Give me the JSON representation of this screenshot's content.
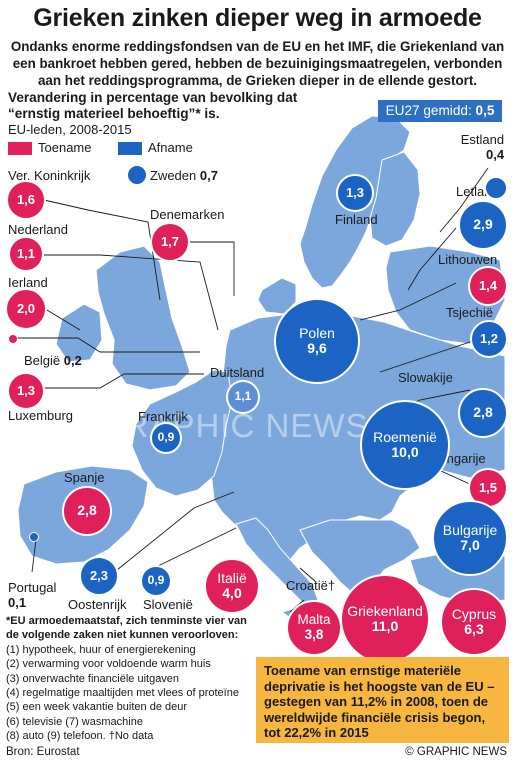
{
  "title": "Grieken zinken dieper weg in armoede",
  "intro": "Ondanks enorme reddingsfondsen van de EU en het IMF, die Griekenland van een bankroet hebben gered, hebben de bezuinigingsmaatregelen, verbonden aan het reddingsprogramma, de Grieken dieper in de ellende gestort.",
  "subhead": "Verandering in percentage van bevolking dat “ernstig materieel behoeftig”* is.",
  "subsub": "EU-leden, 2008-2015",
  "legend": {
    "increase": "Toename",
    "decrease": "Afname",
    "increase_color": "#e0205a",
    "decrease_color": "#1b64c4"
  },
  "average": {
    "label": "EU27 gemidd:",
    "value": "0,5"
  },
  "countries": {
    "uk": {
      "name": "Ver. Koninkrijk",
      "value": "1,6",
      "dir": "up"
    },
    "nl": {
      "name": "Nederland",
      "value": "1,1",
      "dir": "up"
    },
    "ie": {
      "name": "Ierland",
      "value": "2,0",
      "dir": "up"
    },
    "be": {
      "name": "België",
      "value": "0,2",
      "dir": "up"
    },
    "lu": {
      "name": "Luxemburg",
      "value": "1,3",
      "dir": "up"
    },
    "se": {
      "name": "Zweden",
      "value": "0,7",
      "dir": "down"
    },
    "dk": {
      "name": "Denemarken",
      "value": "1,7",
      "dir": "up"
    },
    "fi": {
      "name": "Finland",
      "value": "1,3",
      "dir": "down"
    },
    "ee": {
      "name": "Estland",
      "value": "0,4",
      "dir": "down"
    },
    "lv": {
      "name": "Letland",
      "value": "2,9",
      "dir": "down"
    },
    "lt": {
      "name": "Lithouwen",
      "value": "1,4",
      "dir": "up"
    },
    "cz": {
      "name": "Tsjechië",
      "value": "1,2",
      "dir": "down"
    },
    "pl": {
      "name": "Polen",
      "value": "9,6",
      "dir": "down"
    },
    "de": {
      "name": "Duitsland",
      "value": "1,1",
      "dir": "down"
    },
    "sk": {
      "name": "Slowakije",
      "value": "2,8",
      "dir": "down"
    },
    "fr": {
      "name": "Frankrijk",
      "value": "0,9",
      "dir": "down"
    },
    "ro": {
      "name": "Roemenië",
      "value": "10,0",
      "dir": "down"
    },
    "hu": {
      "name": "Hongarije",
      "value": "1,5",
      "dir": "up"
    },
    "es": {
      "name": "Spanje",
      "value": "2,8",
      "dir": "up"
    },
    "bg": {
      "name": "Bulgarije",
      "value": "7,0",
      "dir": "down"
    },
    "pt": {
      "name": "Portugal",
      "value": "0,1",
      "dir": "down"
    },
    "at": {
      "name": "Oostenrijk",
      "value": "2,3",
      "dir": "down"
    },
    "si": {
      "name": "Slovenië",
      "value": "0,9",
      "dir": "down"
    },
    "it": {
      "name": "Italië",
      "value": "4,0",
      "dir": "up"
    },
    "hr": {
      "name": "Croatië†",
      "value": "",
      "dir": "none"
    },
    "mt": {
      "name": "Malta",
      "value": "3,8",
      "dir": "up"
    },
    "gr": {
      "name": "Griekenland",
      "value": "11,0",
      "dir": "up"
    },
    "cy": {
      "name": "Cyprus",
      "value": "6,3",
      "dir": "up"
    }
  },
  "watermark": "GRAPHIC NEWS",
  "footnote": {
    "heading": "*EU armoedemaatstaf, zich tenminste vier van de volgende zaken niet kunnen veroorloven:",
    "items": [
      "(1) hypotheek, huur of energierekening",
      "(2) verwarming voor voldoende warm huis",
      "(3) onverwachte financiële uitgaven",
      "(4) regelmatige maaltijden met vlees of proteïne",
      "(5) een week vakantie buiten de deur",
      "(6) televisie (7) wasmachine",
      "(8) auto (9) telefoon. †No data"
    ]
  },
  "callout": "Toename van ernstige materiële deprivatie is het hoogste van de EU – gestegen van 11,2% in 2008, toen de wereldwijde financiële crisis begon, tot 22,2% in 2015",
  "source": "Bron: Eurostat",
  "credit": "© GRAPHIC NEWS"
}
